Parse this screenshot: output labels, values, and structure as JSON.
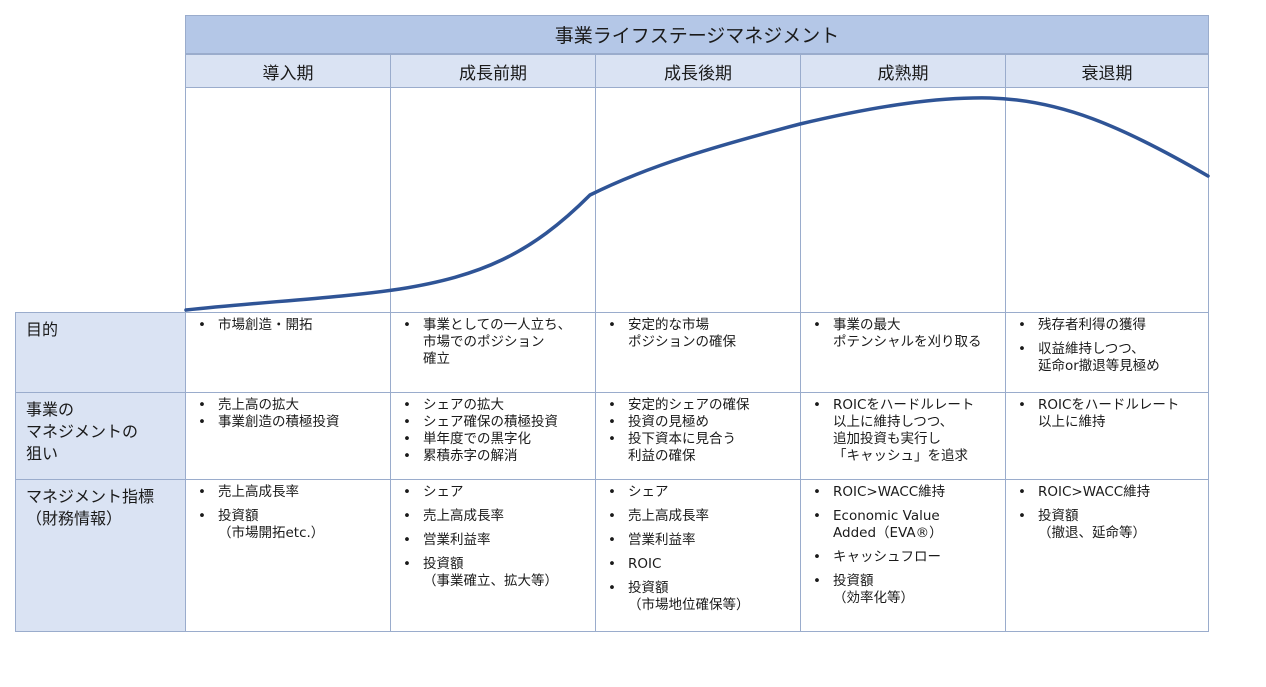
{
  "title": "事業ライフステージマネジメント",
  "phases": [
    "導入期",
    "成長前期",
    "成長後期",
    "成熟期",
    "衰退期"
  ],
  "colors": {
    "header": "#b4c7e7",
    "sub_header": "#dae3f3",
    "curve": "#2f5496",
    "grid": "#9aaccc"
  },
  "rows": [
    {
      "label": "目的",
      "cells": [
        [
          "市場創造・開拓"
        ],
        [
          "事業としての一人立ち、\n市場でのポジション\n確立"
        ],
        [
          "安定的な市場\nポジションの確保"
        ],
        [
          "事業の最大\nポテンシャルを刈り取る"
        ],
        [
          "残存者利得の獲得",
          "収益維持しつつ、\n延命or撤退等見極め"
        ]
      ]
    },
    {
      "label": "事業の\nマネジメントの\n狙い",
      "cells": [
        [
          "売上高の拡大",
          "事業創造の積極投資"
        ],
        [
          "シェアの拡大",
          "シェア確保の積極投資",
          "単年度での黒字化",
          "累積赤字の解消"
        ],
        [
          "安定的シェアの確保",
          "投資の見極め",
          "投下資本に見合う\n利益の確保"
        ],
        [
          "ROICをハードルレート\n以上に維持しつつ、\n追加投資も実行し\n「キャッシュ」を追求"
        ],
        [
          "ROICをハードルレート\n以上に維持"
        ]
      ]
    },
    {
      "label": "マネジメント指標\n（財務情報）",
      "cells": [
        [
          "売上高成長率",
          "投資額\n（市場開拓etc.）"
        ],
        [
          "シェア",
          "売上高成長率",
          "営業利益率",
          "投資額\n（事業確立、拡大等）"
        ],
        [
          "シェア",
          "売上高成長率",
          "営業利益率",
          "ROIC",
          "投資額\n（市場地位確保等）"
        ],
        [
          "ROIC>WACC維持",
          "Economic Value\nAdded（EVA®）",
          "キャッシュフロー",
          "投資額\n（効率化等）"
        ],
        [
          "ROIC>WACC維持",
          "投資額\n（撤退、延命等）"
        ]
      ]
    }
  ]
}
